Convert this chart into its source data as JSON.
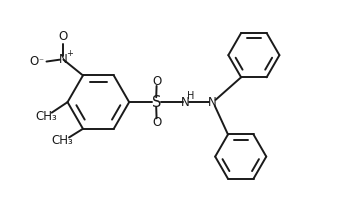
{
  "bg_color": "#ffffff",
  "line_color": "#1a1a1a",
  "line_width": 1.4,
  "font_size": 8.5,
  "figsize": [
    3.62,
    2.08
  ],
  "dpi": 100,
  "xlim": [
    0,
    9.5
  ],
  "ylim": [
    0,
    5.5
  ]
}
